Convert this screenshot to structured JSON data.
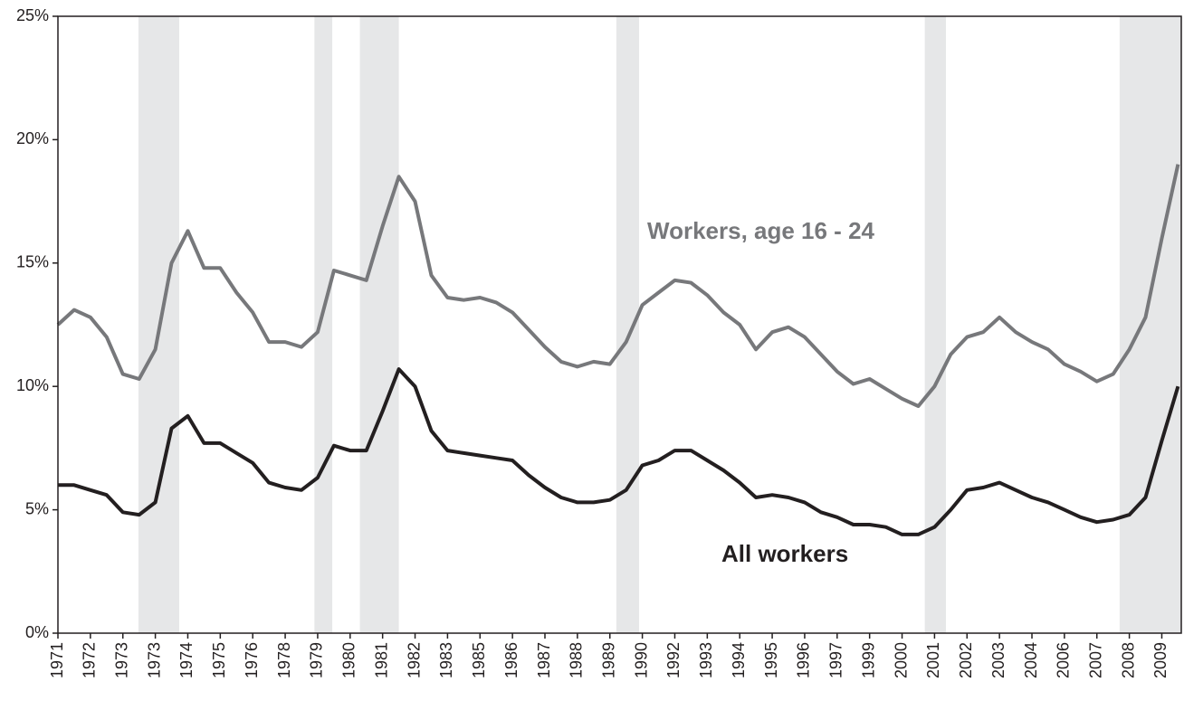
{
  "chart_data": {
    "type": "line",
    "categories": [
      "1971",
      null,
      "1972",
      null,
      "1973",
      null,
      "1973",
      null,
      "1974",
      null,
      "1975",
      null,
      "1976",
      null,
      "1978",
      null,
      "1979",
      null,
      "1980",
      null,
      "1981",
      null,
      "1982",
      null,
      "1983",
      null,
      "1985",
      null,
      "1986",
      null,
      "1987",
      null,
      "1988",
      null,
      "1989",
      null,
      "1990",
      null,
      "1992",
      null,
      "1993",
      null,
      "1994",
      null,
      "1995",
      null,
      "1996",
      null,
      "1997",
      null,
      "1999",
      null,
      "2000",
      null,
      "2001",
      null,
      "2002",
      null,
      "2003",
      null,
      "2004",
      null,
      "2006",
      null,
      "2007",
      null,
      "2008",
      null,
      "2009",
      null
    ],
    "series": [
      {
        "name": "Workers, age 16 - 24",
        "color": "#77787b",
        "values": [
          12.5,
          13.1,
          12.8,
          12.0,
          10.5,
          10.3,
          11.5,
          15.0,
          16.3,
          14.8,
          14.8,
          13.8,
          13.0,
          11.8,
          11.8,
          11.6,
          12.2,
          14.7,
          14.5,
          14.3,
          16.5,
          18.5,
          17.5,
          14.5,
          13.6,
          13.5,
          13.6,
          13.4,
          13.0,
          12.3,
          11.6,
          11.0,
          10.8,
          11.0,
          10.9,
          11.8,
          13.3,
          13.8,
          14.3,
          14.2,
          13.7,
          13.0,
          12.5,
          11.5,
          12.2,
          12.4,
          12.0,
          11.3,
          10.6,
          10.1,
          10.3,
          9.9,
          9.5,
          9.2,
          10.0,
          11.3,
          12.0,
          12.2,
          12.8,
          12.2,
          11.8,
          11.5,
          10.9,
          10.6,
          10.2,
          10.5,
          11.5,
          12.8,
          16.0,
          19.0
        ]
      },
      {
        "name": "All workers",
        "color": "#231f20",
        "values": [
          6.0,
          6.0,
          5.8,
          5.6,
          4.9,
          4.8,
          5.3,
          8.3,
          8.8,
          7.7,
          7.7,
          7.3,
          6.9,
          6.1,
          5.9,
          5.8,
          6.3,
          7.6,
          7.4,
          7.4,
          9.0,
          10.7,
          10.0,
          8.2,
          7.4,
          7.3,
          7.2,
          7.1,
          7.0,
          6.4,
          5.9,
          5.5,
          5.3,
          5.3,
          5.4,
          5.8,
          6.8,
          7.0,
          7.4,
          7.4,
          7.0,
          6.6,
          6.1,
          5.5,
          5.6,
          5.5,
          5.3,
          4.9,
          4.7,
          4.4,
          4.4,
          4.3,
          4.0,
          4.0,
          4.3,
          5.0,
          5.8,
          5.9,
          6.1,
          5.8,
          5.5,
          5.3,
          5.0,
          4.7,
          4.5,
          4.6,
          4.8,
          5.5,
          7.8,
          10.0
        ]
      }
    ],
    "recessions": [
      [
        4.96,
        7.47
      ],
      [
        15.8,
        16.9
      ],
      [
        18.6,
        21.0
      ],
      [
        34.4,
        35.8
      ],
      [
        53.4,
        54.7
      ],
      [
        65.4,
        69.2
      ]
    ],
    "recession_color": "#e6e7e8",
    "xlim": [
      0,
      69.2
    ],
    "ylim": [
      0,
      25
    ],
    "yticks": [
      {
        "value": 0,
        "label": "0%"
      },
      {
        "value": 5,
        "label": "5%"
      },
      {
        "value": 10,
        "label": "10%"
      },
      {
        "value": 15,
        "label": "15%"
      },
      {
        "value": 20,
        "label": "20%"
      },
      {
        "value": 25,
        "label": "25%"
      }
    ]
  }
}
